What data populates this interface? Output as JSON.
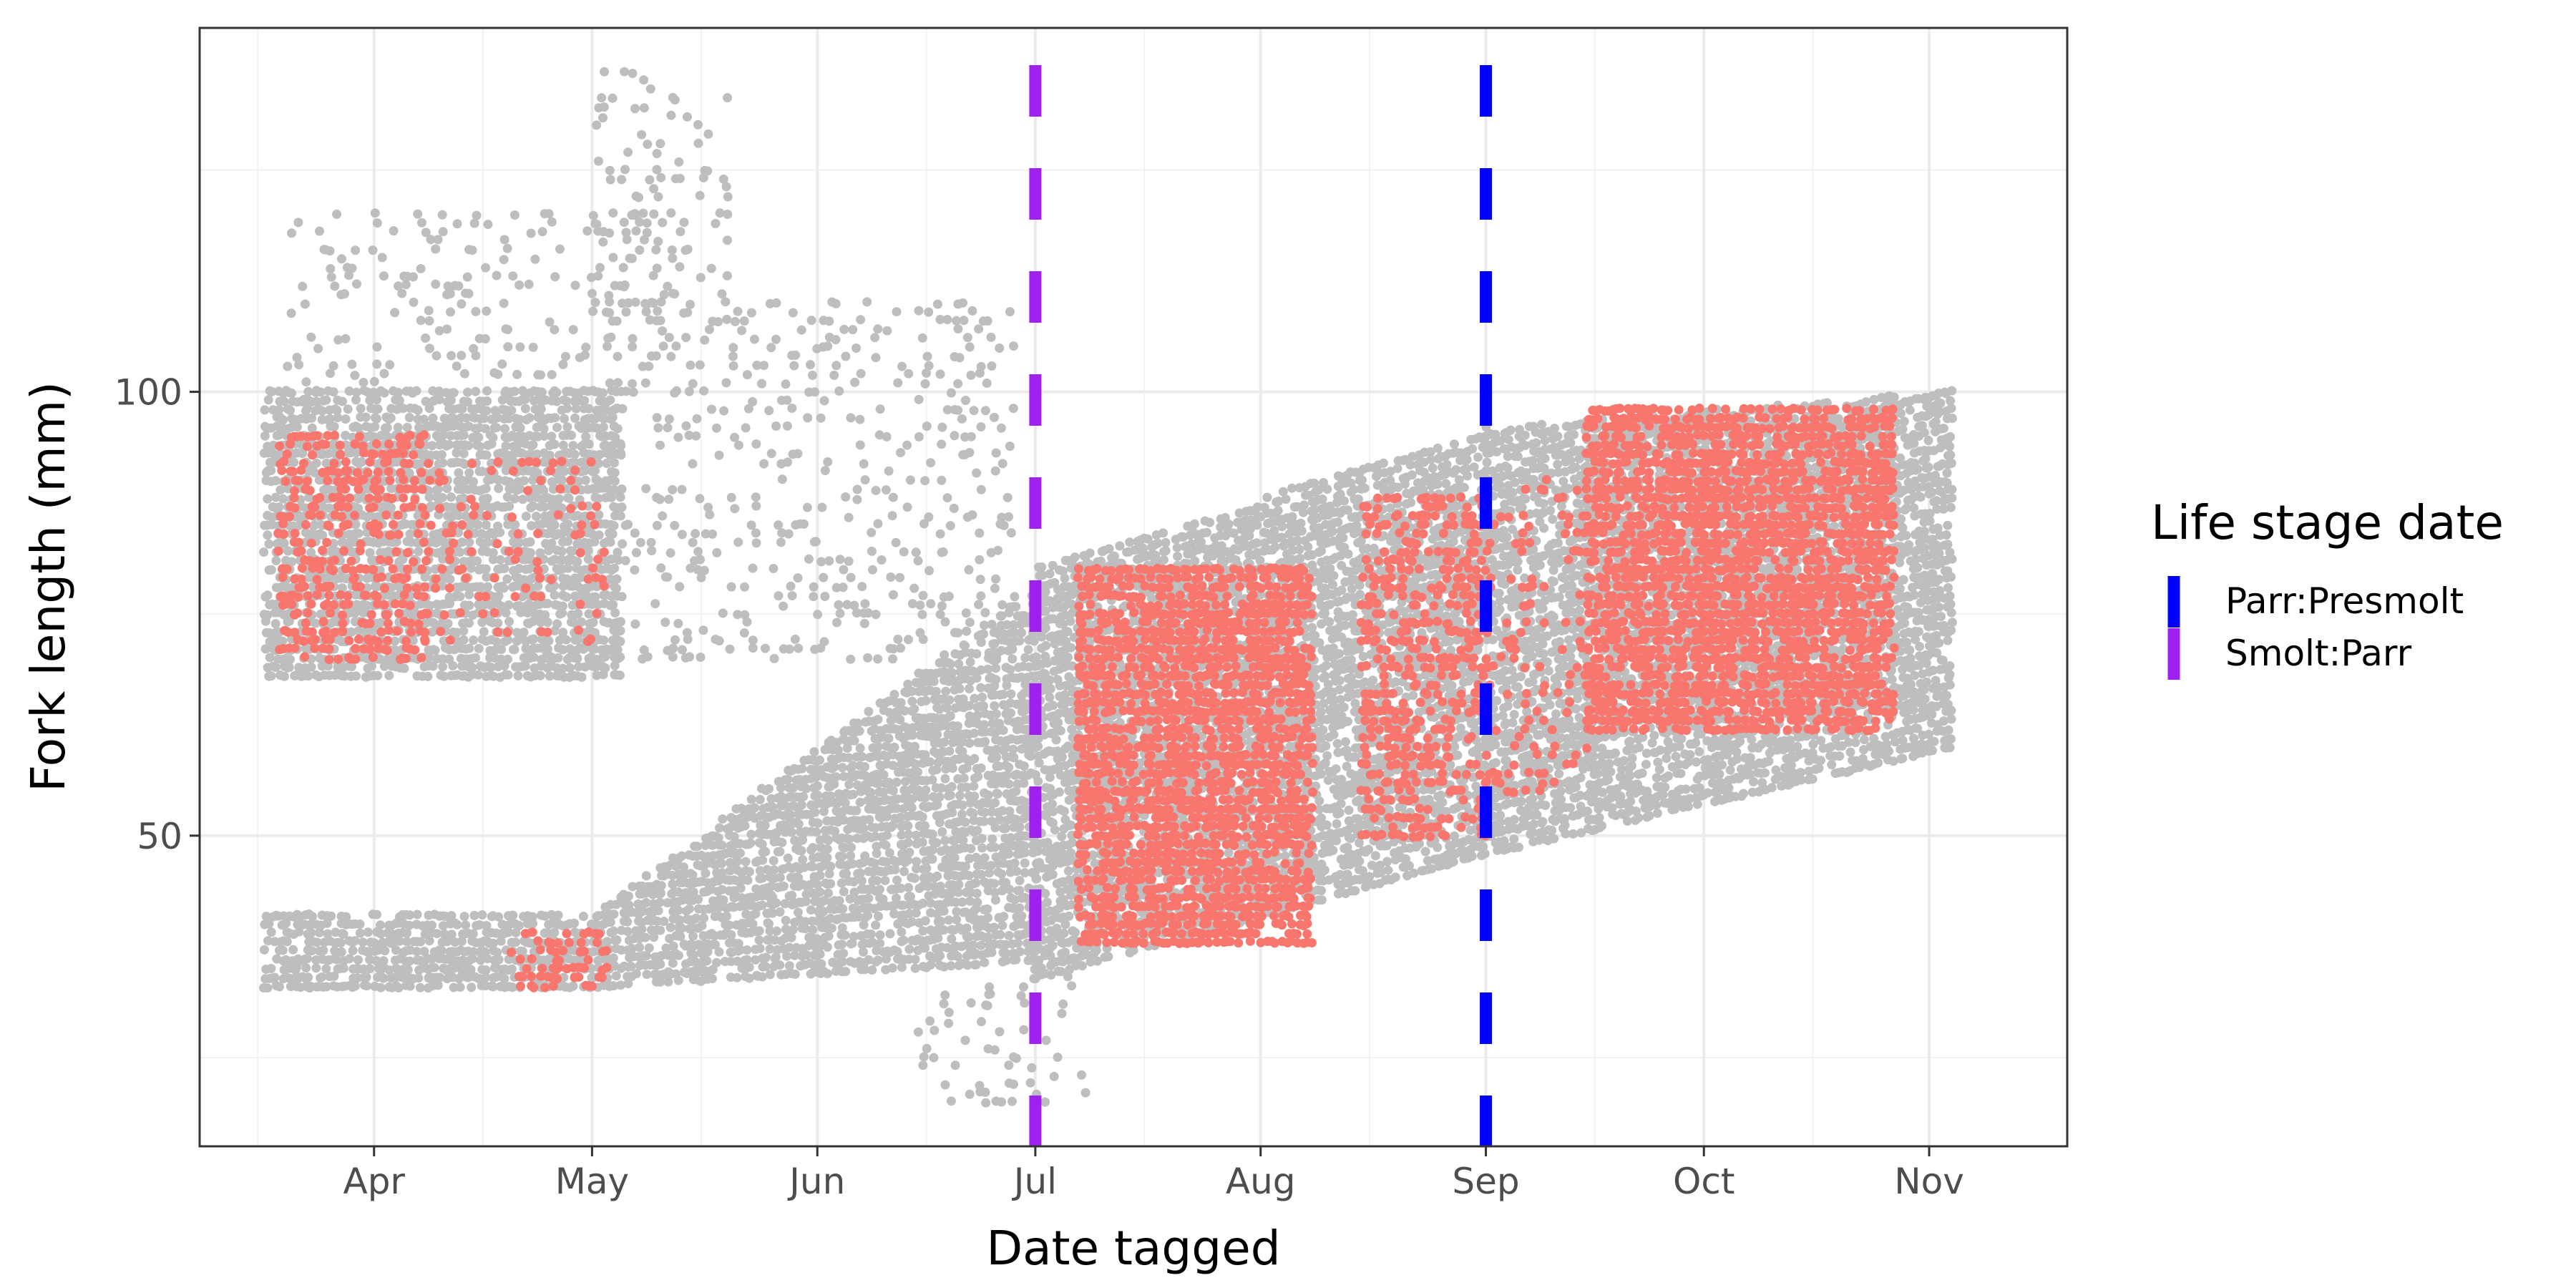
{
  "chart_data": {
    "type": "scatter",
    "xlabel": "Date tagged",
    "ylabel": "Fork length (mm)",
    "xlim": [
      "2021-03-08",
      "2021-11-20"
    ],
    "ylim": [
      15,
      141
    ],
    "x_ticks": [
      {
        "date": "2021-04-01",
        "label": "Apr"
      },
      {
        "date": "2021-05-01",
        "label": "May"
      },
      {
        "date": "2021-06-01",
        "label": "Jun"
      },
      {
        "date": "2021-07-01",
        "label": "Jul"
      },
      {
        "date": "2021-08-01",
        "label": "Aug"
      },
      {
        "date": "2021-09-01",
        "label": "Sep"
      },
      {
        "date": "2021-10-01",
        "label": "Oct"
      },
      {
        "date": "2021-11-01",
        "label": "Nov"
      }
    ],
    "x_minor_ticks": [
      "2021-03-16",
      "2021-04-16",
      "2021-05-16",
      "2021-06-16",
      "2021-07-16",
      "2021-08-16",
      "2021-09-16",
      "2021-10-16"
    ],
    "y_ticks": [
      50,
      100
    ],
    "y_minor_ticks": [
      25,
      75,
      125
    ],
    "grid": true,
    "legend": {
      "title": "Life stage date",
      "position": "right",
      "entries": [
        {
          "label": "Parr:Presmolt",
          "color": "#0000FF"
        },
        {
          "label": "Smolt:Parr",
          "color": "#A020F0"
        }
      ]
    },
    "vlines": [
      {
        "label": "Smolt:Parr",
        "date": "2021-07-01",
        "color": "#A020F0",
        "linetype": "dashed"
      },
      {
        "label": "Parr:Presmolt",
        "date": "2021-09-01",
        "color": "#0000FF",
        "linetype": "dashed"
      }
    ],
    "point_colors": {
      "all_fish": "#BEBEBE",
      "highlighted": "#F8766D"
    },
    "point_clusters": [
      {
        "group": "all_fish",
        "date_start": "2021-03-17",
        "date_end": "2021-05-05",
        "fl_min": 68,
        "fl_max": 100,
        "density": "high"
      },
      {
        "group": "all_fish",
        "date_start": "2021-03-20",
        "date_end": "2021-05-15",
        "fl_min": 100,
        "fl_max": 120,
        "density": "low"
      },
      {
        "group": "all_fish",
        "date_start": "2021-05-03",
        "date_end": "2021-06-28",
        "fl_min": 70,
        "fl_max": 110,
        "density": "low"
      },
      {
        "group": "all_fish",
        "date_start": "2021-05-01",
        "date_end": "2021-05-20",
        "fl_min": 110,
        "fl_max": 136,
        "density": "low"
      },
      {
        "group": "all_fish",
        "date_start": "2021-03-17",
        "date_end": "2021-05-01",
        "fl_min": 33,
        "fl_max": 41,
        "density": "high"
      },
      {
        "group": "all_fish",
        "date_start": "2021-05-01",
        "date_end": "2021-07-01",
        "fl_min_start": 33,
        "fl_min_end": 36,
        "fl_max_start": 41,
        "fl_max_end": 78,
        "density": "high"
      },
      {
        "group": "all_fish",
        "date_start": "2021-07-01",
        "date_end": "2021-09-01",
        "fl_min_start": 34,
        "fl_min_end": 48,
        "fl_max_start": 80,
        "fl_max_end": 96,
        "density": "high"
      },
      {
        "group": "all_fish",
        "date_start": "2021-09-01",
        "date_end": "2021-11-04",
        "fl_min_start": 48,
        "fl_min_end": 60,
        "fl_max_start": 96,
        "fl_max_end": 100,
        "density": "high"
      },
      {
        "group": "all_fish",
        "date_start": "2021-06-15",
        "date_end": "2021-07-08",
        "fl_min": 20,
        "fl_max": 34,
        "density": "low"
      },
      {
        "group": "highlighted",
        "date_start": "2021-03-19",
        "date_end": "2021-04-08",
        "fl_min": 70,
        "fl_max": 95,
        "density": "medium"
      },
      {
        "group": "highlighted",
        "date_start": "2021-04-08",
        "date_end": "2021-05-03",
        "fl_min": 72,
        "fl_max": 92,
        "density": "low"
      },
      {
        "group": "highlighted",
        "date_start": "2021-04-20",
        "date_end": "2021-05-03",
        "fl_min": 33,
        "fl_max": 39,
        "density": "medium"
      },
      {
        "group": "highlighted",
        "date_start": "2021-07-07",
        "date_end": "2021-08-08",
        "fl_min": 38,
        "fl_max": 80,
        "density": "high"
      },
      {
        "group": "highlighted",
        "date_start": "2021-08-15",
        "date_end": "2021-09-01",
        "fl_min": 50,
        "fl_max": 88,
        "density": "medium"
      },
      {
        "group": "highlighted",
        "date_start": "2021-09-01",
        "date_end": "2021-09-15",
        "fl_min": 55,
        "fl_max": 90,
        "density": "low"
      },
      {
        "group": "highlighted",
        "date_start": "2021-09-15",
        "date_end": "2021-10-27",
        "fl_min": 62,
        "fl_max": 98,
        "density": "high"
      }
    ]
  }
}
